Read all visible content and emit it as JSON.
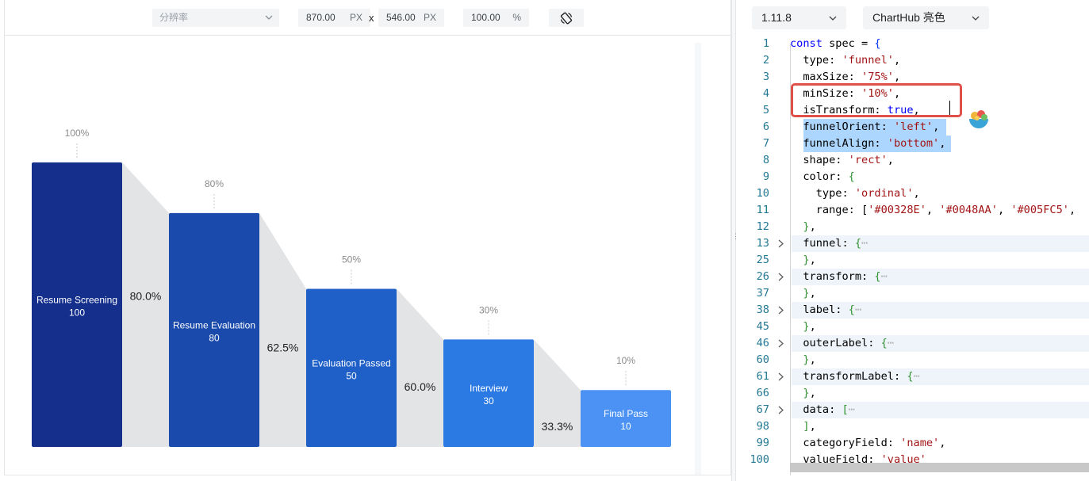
{
  "preview_toolbar": {
    "resolution_placeholder": "分辨率",
    "width_value": "870.00",
    "width_unit": "PX",
    "separator": "x",
    "height_value": "546.00",
    "height_unit": "PX",
    "zoom_value": "100.00",
    "zoom_unit": "%",
    "rotate_icon": "rotate-screen-icon"
  },
  "editor_toolbar": {
    "version": "1.11.8",
    "theme": "ChartHub 亮色"
  },
  "chart_data": {
    "type": "funnel",
    "orient": "left",
    "align": "bottom",
    "categories": [
      "Resume Screening",
      "Resume Evaluation",
      "Evaluation Passed",
      "Interview",
      "Final Pass"
    ],
    "values": [
      100,
      80,
      50,
      30,
      10
    ],
    "value_labels": [
      "100",
      "80",
      "50",
      "30",
      "10"
    ],
    "outer_labels": [
      "100%",
      "80%",
      "50%",
      "30%",
      "10%"
    ],
    "transform_labels": [
      "80.0%",
      "62.5%",
      "60.0%",
      "33.3%"
    ],
    "colors": [
      "#142F8C",
      "#1A4AAB",
      "#1F5FC8",
      "#2B79E3",
      "#4C92F5"
    ],
    "transform_color": "#E3E4E6"
  },
  "code_lines": [
    {
      "n": "1"
    },
    {
      "n": "2"
    },
    {
      "n": "3"
    },
    {
      "n": "4"
    },
    {
      "n": "5"
    },
    {
      "n": "6"
    },
    {
      "n": "7"
    },
    {
      "n": "8"
    },
    {
      "n": "9"
    },
    {
      "n": "10"
    },
    {
      "n": "11"
    },
    {
      "n": "12"
    },
    {
      "n": "13"
    },
    {
      "n": "25"
    },
    {
      "n": "26"
    },
    {
      "n": "37"
    },
    {
      "n": "38"
    },
    {
      "n": "45"
    },
    {
      "n": "46"
    },
    {
      "n": "60"
    },
    {
      "n": "61"
    },
    {
      "n": "66"
    },
    {
      "n": "67"
    },
    {
      "n": "98"
    },
    {
      "n": "99"
    },
    {
      "n": "100"
    }
  ],
  "code_text": {
    "l1": [
      "const",
      " spec = {"
    ],
    "l2": [
      "  type: ",
      "'funnel'",
      ","
    ],
    "l3": [
      "  maxSize: ",
      "'75%'",
      ","
    ],
    "l4": [
      "  minSize: ",
      "'10%'",
      ","
    ],
    "l5": [
      "  isTransform: ",
      "true",
      ","
    ],
    "l6": [
      "  funnelOrient: ",
      "'left'",
      ","
    ],
    "l7": [
      "  funnelAlign: ",
      "'bottom'",
      ","
    ],
    "l8": [
      "  shape: ",
      "'rect'",
      ","
    ],
    "l9": [
      "  color: ",
      "{"
    ],
    "l10": [
      "    type: ",
      "'ordinal'",
      ","
    ],
    "l11": [
      "    range: [",
      "'#00328E'",
      ", ",
      "'#0048AA'",
      ", ",
      "'#005FC5'",
      ","
    ],
    "l12": [
      "  ",
      "}",
      ","
    ],
    "l13": [
      "  funnel: ",
      "{",
      "⋯"
    ],
    "l25": [
      "  ",
      "}",
      ","
    ],
    "l26": [
      "  transform: ",
      "{",
      "⋯"
    ],
    "l37": [
      "  ",
      "}",
      ","
    ],
    "l38": [
      "  label: ",
      "{",
      "⋯"
    ],
    "l45": [
      "  ",
      "}",
      ","
    ],
    "l46": [
      "  outerLabel: ",
      "{",
      "⋯"
    ],
    "l60": [
      "  ",
      "}",
      ","
    ],
    "l61": [
      "  transformLabel: ",
      "{",
      "⋯"
    ],
    "l66": [
      "  ",
      "}",
      ","
    ],
    "l67": [
      "  data: ",
      "[",
      "⋯"
    ],
    "l98": [
      "  ",
      "]",
      ","
    ],
    "l99": [
      "  categoryField: ",
      "'name'",
      ","
    ],
    "l100": [
      "  valueField: ",
      "'value'"
    ]
  }
}
